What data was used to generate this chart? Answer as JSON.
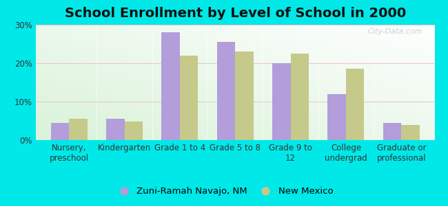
{
  "title": "School Enrollment by Level of School in 2000",
  "categories": [
    "Nursery,\npreschool",
    "Kindergarten",
    "Grade 1 to 4",
    "Grade 5 to 8",
    "Grade 9 to\n12",
    "College\nundergrad",
    "Graduate or\nprofessional"
  ],
  "zuni_values": [
    4.5,
    5.5,
    28.0,
    25.5,
    20.0,
    12.0,
    4.5
  ],
  "nm_values": [
    5.5,
    4.8,
    22.0,
    23.0,
    22.5,
    18.5,
    4.0
  ],
  "zuni_color": "#b39ddb",
  "nm_color": "#c5c98a",
  "background_color": "#00e8e8",
  "ylim": [
    0,
    30
  ],
  "yticks": [
    0,
    10,
    20,
    30
  ],
  "ytick_labels": [
    "0%",
    "10%",
    "20%",
    "30%"
  ],
  "legend_label1": "Zuni-Ramah Navajo, NM",
  "legend_label2": "New Mexico",
  "title_fontsize": 14,
  "tick_fontsize": 8.5,
  "legend_fontsize": 9.5
}
